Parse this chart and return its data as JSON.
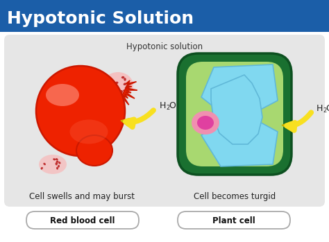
{
  "title": "Hypotonic Solution",
  "title_bg": "#1b5ea8",
  "title_color": "#ffffff",
  "subtitle": "Hypotonic solution",
  "bg_panel": "#e6e6e6",
  "main_bg": "#ffffff",
  "left_label": "Cell swells and may burst",
  "right_label": "Cell becomes turgid",
  "left_cell_label": "Red blood cell",
  "right_cell_label": "Plant cell",
  "h2o_text": "H",
  "h2o_sub": "2",
  "h2o_end": "O",
  "red_cell_color": "#ee2200",
  "red_cell_dark": "#cc1800",
  "red_cell_light": "#f86040",
  "red_cell_lighter": "#ffa090",
  "plant_outer_color": "#1a7030",
  "plant_outer_dark": "#0d5020",
  "plant_mid_color": "#a8d870",
  "plant_vacuole_color": "#80d8f0",
  "plant_vacuole_edge": "#60b8d8",
  "plant_nucleus_outer": "#f090b0",
  "plant_nucleus_inner": "#e040a0",
  "arrow_fill": "#f8e020",
  "arrow_edge": "#c8b000",
  "burst_pink": "#f8b8b8",
  "burst_dark": "#c03030",
  "label_box_edge": "#aaaaaa"
}
